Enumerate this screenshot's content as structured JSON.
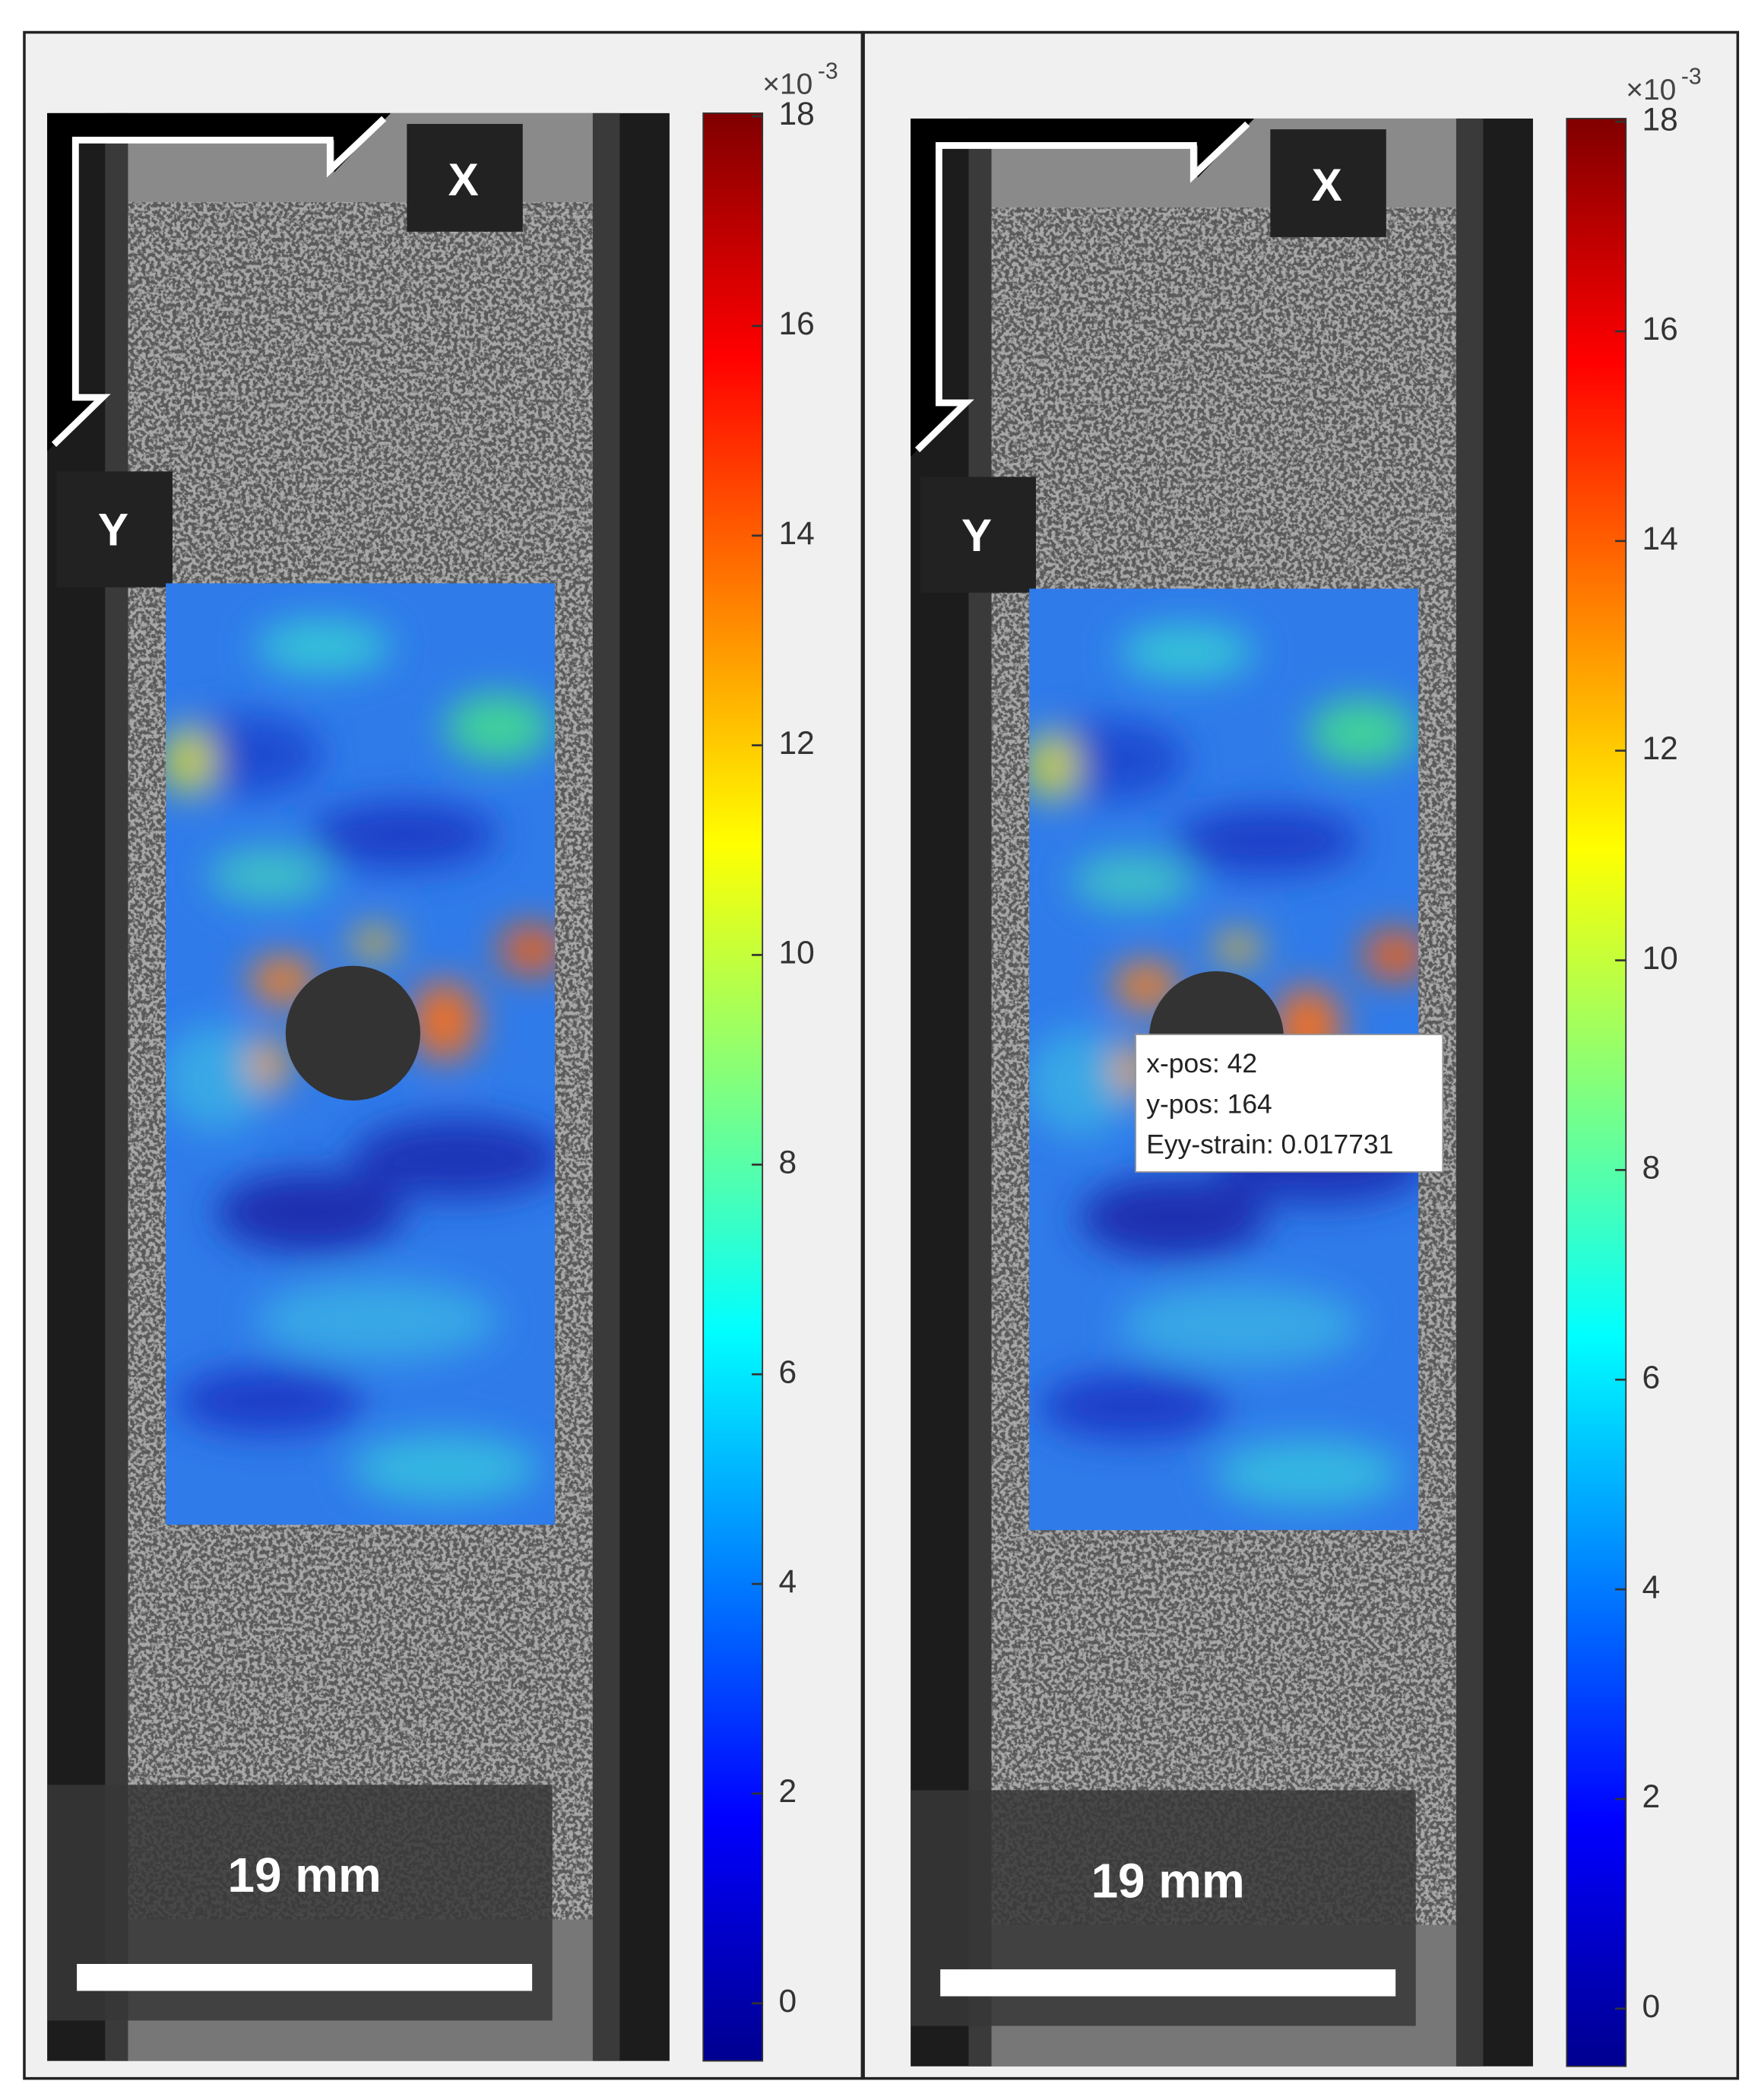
{
  "panels": [
    {
      "labels": {
        "x": "X",
        "y": "Y"
      },
      "scale_bar": "19 mm",
      "colorbar": {
        "multiplier": "×10",
        "exponent": "-3",
        "range": [
          -0.55,
          18.03
        ],
        "ticks": [
          0,
          2,
          4,
          6,
          8,
          10,
          12,
          14,
          16,
          18
        ]
      }
    },
    {
      "labels": {
        "x": "X",
        "y": "Y"
      },
      "scale_bar": "19 mm",
      "colorbar": {
        "multiplier": "×10",
        "exponent": "-3",
        "range": [
          -0.55,
          18.03
        ],
        "ticks": [
          0,
          2,
          4,
          6,
          8,
          10,
          12,
          14,
          16,
          18
        ]
      },
      "datatip": [
        "x-pos: 42",
        "y-pos: 164",
        "Eyy-strain: 0.017731"
      ]
    }
  ]
}
